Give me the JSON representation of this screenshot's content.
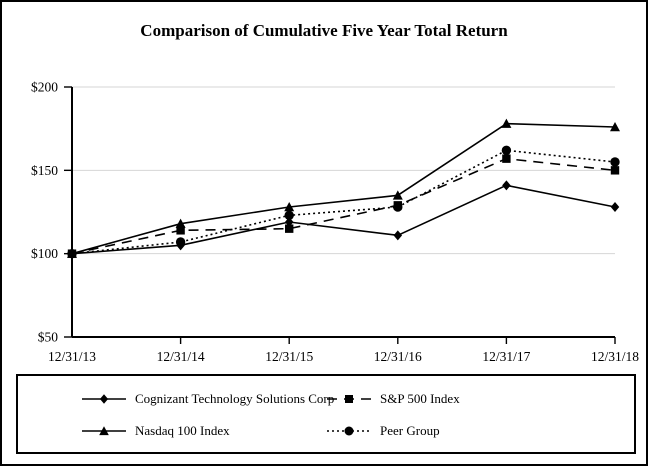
{
  "chart_data": {
    "type": "line",
    "title": "Comparison of Cumulative Five Year Total Return",
    "categories": [
      "12/31/13",
      "12/31/14",
      "12/31/15",
      "12/31/16",
      "12/31/17",
      "12/31/18"
    ],
    "series": [
      {
        "name": "Cognizant Technology Solutions Corp",
        "line_style": "solid",
        "marker": "diamond",
        "values": [
          100,
          105,
          119,
          111,
          141,
          128
        ]
      },
      {
        "name": "S&P 500 Index",
        "line_style": "dashed",
        "marker": "square",
        "values": [
          100,
          114,
          115,
          129,
          157,
          150
        ]
      },
      {
        "name": "Nasdaq 100 Index",
        "line_style": "solid",
        "marker": "triangle",
        "values": [
          100,
          118,
          128,
          135,
          178,
          176
        ]
      },
      {
        "name": "Peer Group",
        "line_style": "dotted",
        "marker": "circle",
        "values": [
          100,
          107,
          123,
          128,
          162,
          155
        ]
      }
    ],
    "xlabel": "",
    "ylabel": "",
    "ylim": [
      50,
      200
    ],
    "y_ticks": [
      200,
      150,
      100,
      50
    ],
    "y_tick_labels": [
      "$200",
      "$150",
      "$100",
      "$50"
    ],
    "grid": "horizontal-light",
    "legend_position": "bottom-boxed",
    "colors": {
      "foreground": "#000000",
      "grid": "#d6d6d6",
      "background": "#ffffff"
    }
  }
}
